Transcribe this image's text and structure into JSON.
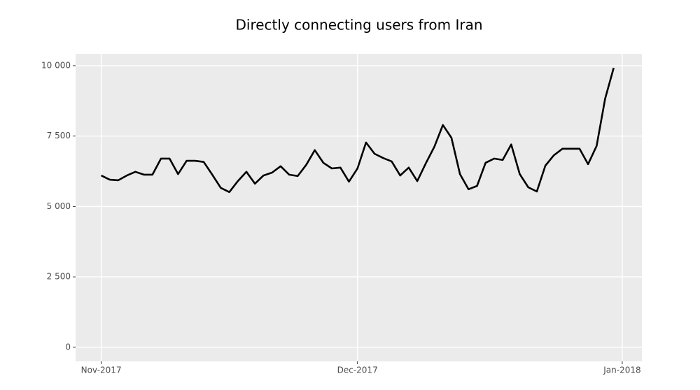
{
  "chart_data": {
    "type": "line",
    "title": "Directly connecting users from Iran",
    "x": [
      0,
      1,
      2,
      3,
      4,
      5,
      6,
      7,
      8,
      9,
      10,
      11,
      12,
      13,
      14,
      15,
      16,
      17,
      18,
      19,
      20,
      21,
      22,
      23,
      24,
      25,
      26,
      27,
      28,
      29,
      30,
      31,
      32,
      33,
      34,
      35,
      36,
      37,
      38,
      39,
      40,
      41,
      42,
      43,
      44,
      45,
      46,
      47,
      48,
      49,
      50,
      51,
      52,
      53,
      54,
      55,
      56,
      57,
      58,
      59,
      60
    ],
    "series": [
      {
        "name": "users",
        "color": "#000000",
        "values": [
          6100,
          5950,
          5930,
          6100,
          6230,
          6130,
          6130,
          6700,
          6700,
          6150,
          6620,
          6620,
          6580,
          6130,
          5660,
          5510,
          5900,
          6230,
          5810,
          6100,
          6200,
          6430,
          6130,
          6080,
          6480,
          7000,
          6550,
          6350,
          6380,
          5880,
          6350,
          7270,
          6870,
          6720,
          6600,
          6100,
          6380,
          5900,
          6530,
          7120,
          7890,
          7440,
          6150,
          5610,
          5730,
          6550,
          6700,
          6650,
          7200,
          6150,
          5680,
          5530,
          6450,
          6820,
          7050,
          7050,
          7050,
          6500,
          7150,
          8830,
          9920
        ]
      }
    ],
    "xlim": [
      -3,
      63.3
    ],
    "xticks": [
      {
        "value": 0,
        "label": "Nov-2017"
      },
      {
        "value": 30,
        "label": "Dec-2017"
      },
      {
        "value": 61,
        "label": "Jan-2018"
      }
    ],
    "ylim": [
      -500,
      10420
    ],
    "yticks": [
      {
        "value": 0,
        "label": "0"
      },
      {
        "value": 2500,
        "label": "2 500"
      },
      {
        "value": 5000,
        "label": "5 000"
      },
      {
        "value": 7500,
        "label": "7 500"
      },
      {
        "value": 10000,
        "label": "10 000"
      }
    ],
    "grid": true
  }
}
